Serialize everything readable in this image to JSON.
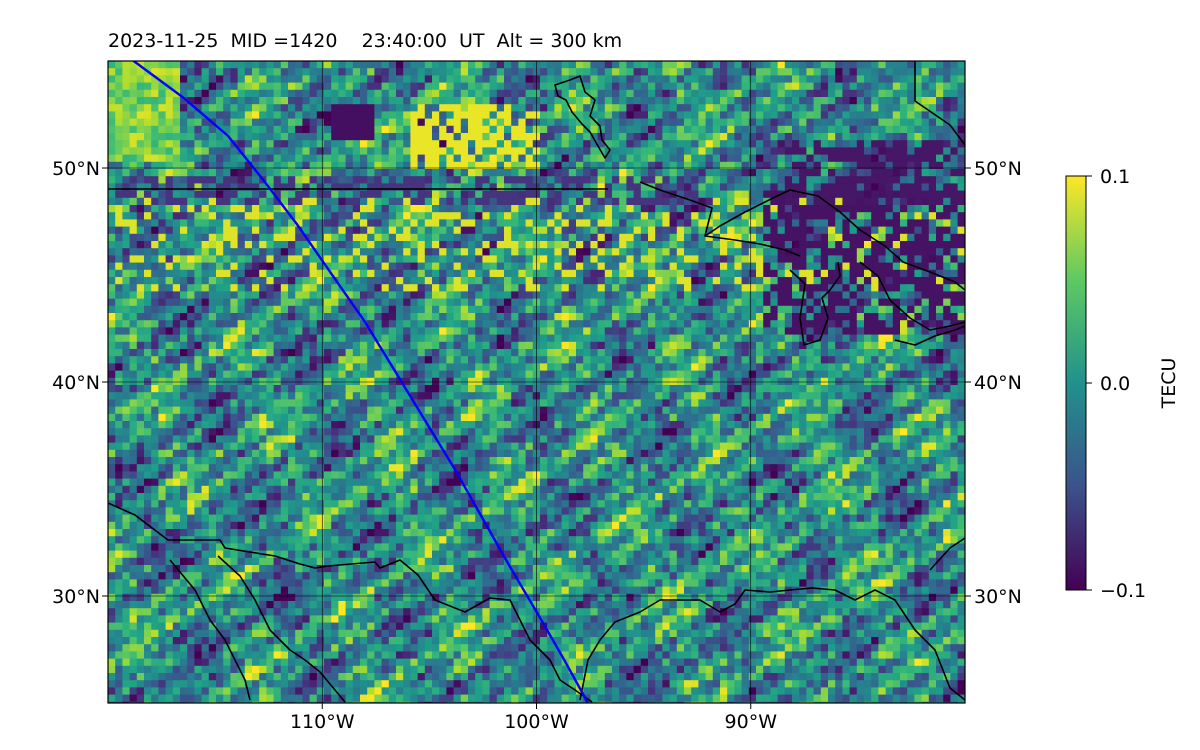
{
  "title": "2023-11-25  MID =1420    23:40:00  UT  Alt = 300 km",
  "map": {
    "lon_range": [
      -120,
      -80
    ],
    "lat_range": [
      25,
      55
    ],
    "lon_ticks": [
      {
        "value": -110,
        "label": "110°W"
      },
      {
        "value": -100,
        "label": "100°W"
      },
      {
        "value": -90,
        "label": "90°W"
      }
    ],
    "lat_ticks": [
      {
        "value": 30,
        "label": "30°N"
      },
      {
        "value": 40,
        "label": "40°N"
      },
      {
        "value": 50,
        "label": "50°N"
      }
    ],
    "colormap": "viridis",
    "gridlines": true,
    "track": {
      "color": "#0000ff",
      "points": [
        [
          -118.8,
          55
        ],
        [
          -116.5,
          53.3
        ],
        [
          -114.4,
          51.5
        ],
        [
          -112.8,
          49.5
        ],
        [
          -111.2,
          47.4
        ],
        [
          -109.6,
          45.1
        ],
        [
          -108,
          42.8
        ],
        [
          -106.6,
          40.5
        ],
        [
          -105.2,
          38.2
        ],
        [
          -103.8,
          35.9
        ],
        [
          -102.5,
          33.6
        ],
        [
          -101.2,
          31.3
        ],
        [
          -99.9,
          29.1
        ],
        [
          -98.7,
          27
        ],
        [
          -97.6,
          25
        ]
      ]
    }
  },
  "colorbar": {
    "label": "TECU",
    "min": -0.1,
    "max": 0.1,
    "ticks": [
      {
        "value": 0.1,
        "label": "0.1"
      },
      {
        "value": 0.0,
        "label": "0.0"
      },
      {
        "value": -0.1,
        "label": "−0.1"
      }
    ]
  }
}
